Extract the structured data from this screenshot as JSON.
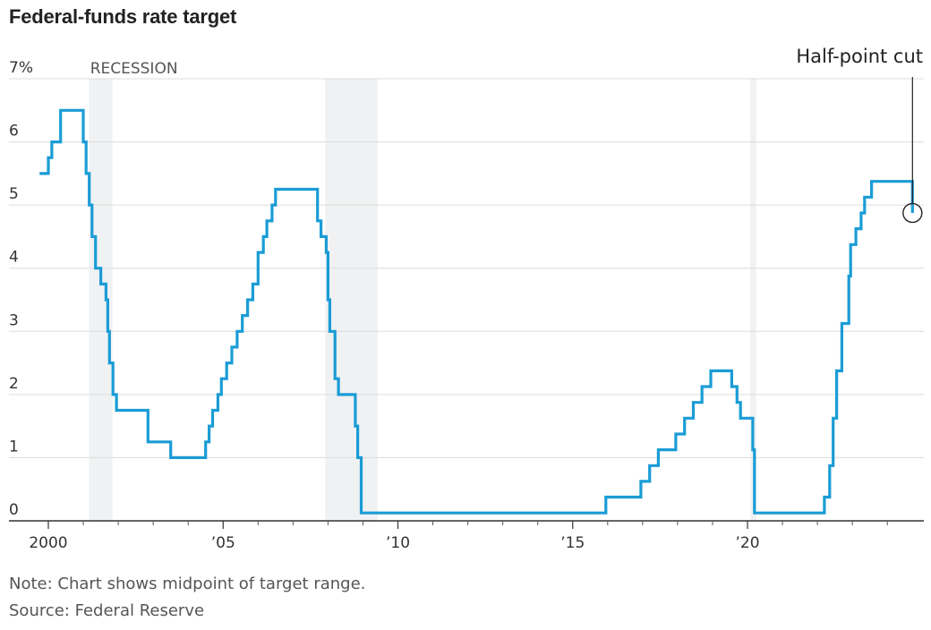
{
  "chart_data": {
    "type": "line",
    "title": "Federal-funds rate target",
    "ylim": [
      0,
      7
    ],
    "xlim": [
      1999.8,
      2024.9
    ],
    "y_ticks": [
      {
        "value": 0,
        "label": "0"
      },
      {
        "value": 1,
        "label": "1"
      },
      {
        "value": 2,
        "label": "2"
      },
      {
        "value": 3,
        "label": "3"
      },
      {
        "value": 4,
        "label": "4"
      },
      {
        "value": 5,
        "label": "5"
      },
      {
        "value": 6,
        "label": "6"
      },
      {
        "value": 7,
        "label": "7%"
      }
    ],
    "x_ticks": [
      {
        "value": 2000,
        "label": "2000"
      },
      {
        "value": 2005,
        "label": "’05"
      },
      {
        "value": 2010,
        "label": "’10"
      },
      {
        "value": 2015,
        "label": "’15"
      },
      {
        "value": 2020,
        "label": "’20"
      }
    ],
    "minor_x_ticks": [
      2001,
      2002,
      2003,
      2004,
      2006,
      2007,
      2008,
      2009,
      2011,
      2012,
      2013,
      2014,
      2016,
      2017,
      2018,
      2019,
      2021,
      2022,
      2023,
      2024
    ],
    "grid": true,
    "recession_label": "RECESSION",
    "recessions": [
      [
        2001.17,
        2001.83
      ],
      [
        2007.92,
        2009.42
      ],
      [
        2020.08,
        2020.25
      ]
    ],
    "series": [
      {
        "color": "#1a9cd6",
        "step": true,
        "points": [
          [
            1999.75,
            5.5
          ],
          [
            2000.0,
            5.75
          ],
          [
            2000.1,
            6.0
          ],
          [
            2000.35,
            6.5
          ],
          [
            2001.0,
            6.0
          ],
          [
            2001.08,
            5.5
          ],
          [
            2001.17,
            5.0
          ],
          [
            2001.25,
            4.5
          ],
          [
            2001.35,
            4.0
          ],
          [
            2001.5,
            3.75
          ],
          [
            2001.65,
            3.5
          ],
          [
            2001.7,
            3.0
          ],
          [
            2001.75,
            2.5
          ],
          [
            2001.85,
            2.0
          ],
          [
            2001.95,
            1.75
          ],
          [
            2002.85,
            1.25
          ],
          [
            2003.5,
            1.0
          ],
          [
            2004.5,
            1.25
          ],
          [
            2004.6,
            1.5
          ],
          [
            2004.7,
            1.75
          ],
          [
            2004.85,
            2.0
          ],
          [
            2004.95,
            2.25
          ],
          [
            2005.1,
            2.5
          ],
          [
            2005.25,
            2.75
          ],
          [
            2005.4,
            3.0
          ],
          [
            2005.55,
            3.25
          ],
          [
            2005.7,
            3.5
          ],
          [
            2005.85,
            3.75
          ],
          [
            2006.0,
            4.25
          ],
          [
            2006.15,
            4.5
          ],
          [
            2006.25,
            4.75
          ],
          [
            2006.4,
            5.0
          ],
          [
            2006.5,
            5.25
          ],
          [
            2007.7,
            4.75
          ],
          [
            2007.8,
            4.5
          ],
          [
            2007.95,
            4.25
          ],
          [
            2008.0,
            3.5
          ],
          [
            2008.05,
            3.0
          ],
          [
            2008.2,
            2.25
          ],
          [
            2008.3,
            2.0
          ],
          [
            2008.78,
            1.5
          ],
          [
            2008.85,
            1.0
          ],
          [
            2008.95,
            0.125
          ],
          [
            2015.95,
            0.375
          ],
          [
            2016.95,
            0.625
          ],
          [
            2017.2,
            0.875
          ],
          [
            2017.45,
            1.125
          ],
          [
            2017.95,
            1.375
          ],
          [
            2018.2,
            1.625
          ],
          [
            2018.45,
            1.875
          ],
          [
            2018.7,
            2.125
          ],
          [
            2018.95,
            2.375
          ],
          [
            2019.55,
            2.125
          ],
          [
            2019.7,
            1.875
          ],
          [
            2019.8,
            1.625
          ],
          [
            2020.15,
            1.125
          ],
          [
            2020.2,
            0.125
          ],
          [
            2022.2,
            0.375
          ],
          [
            2022.35,
            0.875
          ],
          [
            2022.45,
            1.625
          ],
          [
            2022.55,
            2.375
          ],
          [
            2022.7,
            3.125
          ],
          [
            2022.9,
            3.875
          ],
          [
            2022.95,
            4.375
          ],
          [
            2023.1,
            4.625
          ],
          [
            2023.25,
            4.875
          ],
          [
            2023.35,
            5.125
          ],
          [
            2023.55,
            5.375
          ],
          [
            2024.72,
            4.875
          ]
        ]
      }
    ],
    "annotation": {
      "label": "Half-point cut",
      "x": 2024.72,
      "y": 4.875
    }
  },
  "footer": {
    "note": "Note: Chart shows midpoint of target range.",
    "source": "Source: Federal Reserve"
  }
}
